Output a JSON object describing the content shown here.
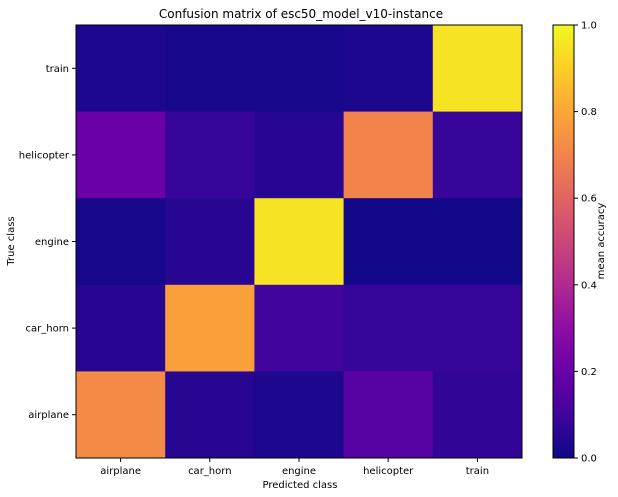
{
  "chart_data": {
    "type": "heatmap",
    "title": "Confusion matrix of esc50_model_v10-instance",
    "xlabel": "Predicted class",
    "ylabel": "True class",
    "x_categories": [
      "airplane",
      "car_horn",
      "engine",
      "helicopter",
      "train"
    ],
    "y_categories": [
      "train",
      "helicopter",
      "engine",
      "car_horn",
      "airplane"
    ],
    "values": [
      [
        0.03,
        0.02,
        0.02,
        0.03,
        0.95
      ],
      [
        0.2,
        0.08,
        0.05,
        0.7,
        0.08
      ],
      [
        0.02,
        0.05,
        0.95,
        0.01,
        0.01
      ],
      [
        0.05,
        0.78,
        0.1,
        0.08,
        0.08
      ],
      [
        0.72,
        0.05,
        0.03,
        0.15,
        0.07
      ]
    ],
    "colormap": "plasma",
    "colorbar": {
      "label": "mean accuracy",
      "range": [
        0,
        1
      ],
      "ticks": [
        "0.0",
        "0.2",
        "0.4",
        "0.6",
        "0.8",
        "1.0"
      ]
    }
  }
}
